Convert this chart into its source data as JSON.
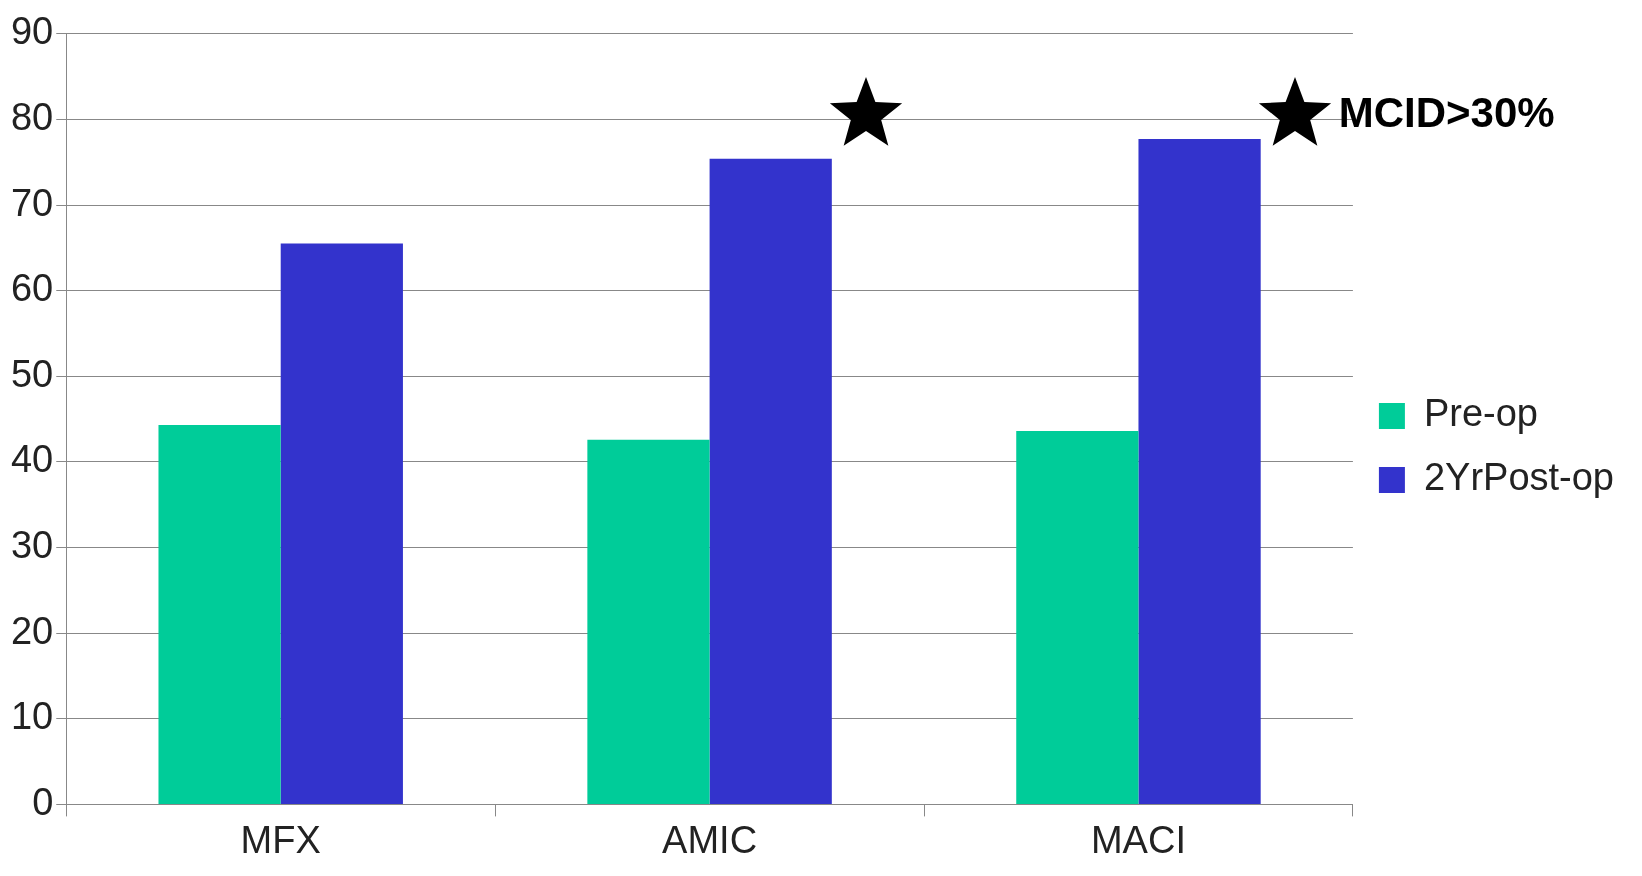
{
  "chart_data": {
    "type": "bar",
    "categories": [
      "MFX",
      "AMIC",
      "MACI"
    ],
    "series": [
      {
        "name": "Pre-op",
        "color": "#00cc99",
        "values": [
          44.3,
          42.6,
          43.6
        ]
      },
      {
        "name": "2YrPost-op",
        "color": "#3333cc",
        "values": [
          65.5,
          75.4,
          77.7
        ]
      }
    ],
    "ylim": [
      0,
      90
    ],
    "yticks": [
      0,
      10,
      20,
      30,
      40,
      50,
      60,
      70,
      80,
      90
    ],
    "grid": "y",
    "legend": "right",
    "annotations": [
      "MCID>30%"
    ]
  }
}
